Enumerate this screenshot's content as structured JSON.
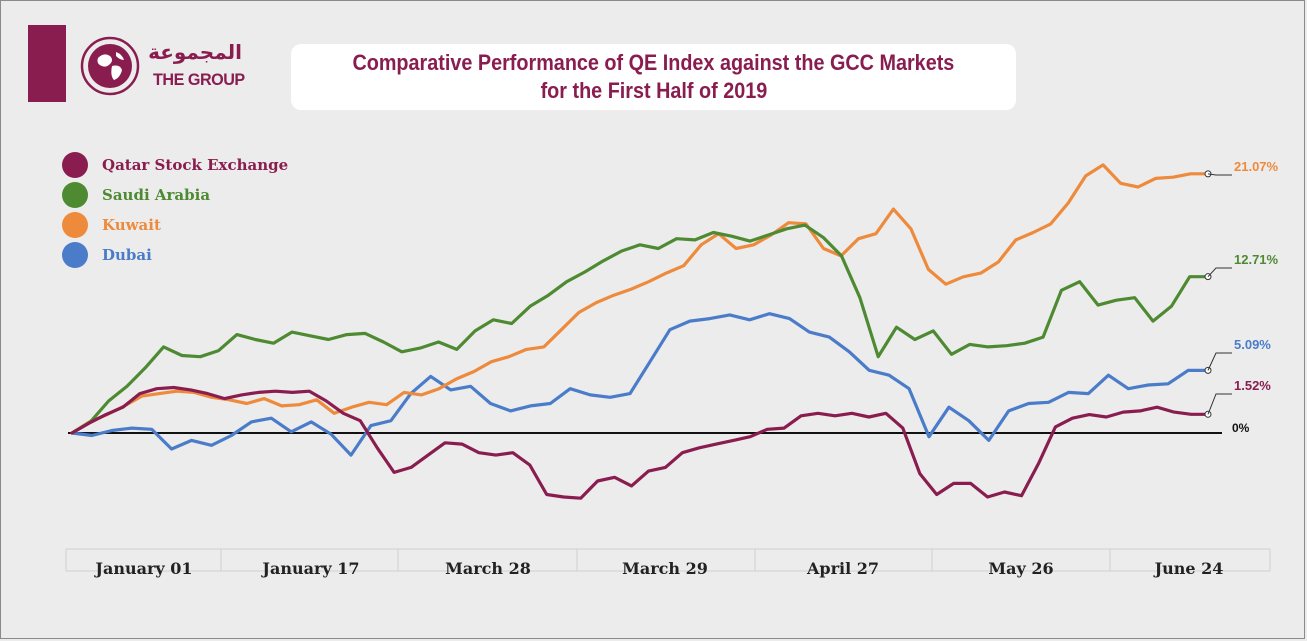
{
  "brand": {
    "arabic_name": "المجموعة",
    "english_name": "THE GROUP",
    "color": "#8a1d4f"
  },
  "title": {
    "line1": "Comparative Performance of QE Index against the GCC Markets",
    "line2": "for the First Half of 2019"
  },
  "chart_data": {
    "type": "line",
    "title": "Comparative Performance of QE Index against the GCC Markets for the First Half of 2019",
    "xlabel": "",
    "ylabel": "",
    "x_tick_labels": [
      "January 01",
      "January 17",
      "March 28",
      "March 29",
      "April 27",
      "May 26",
      "June 24"
    ],
    "ylim": [
      -10,
      25
    ],
    "baseline": 0,
    "baseline_label": "0%",
    "legend_position": "top-left",
    "grid": false,
    "series": [
      {
        "name": "Qatar Stock Exchange",
        "color": "#8a1d4f",
        "end_label": "1.52%",
        "values": [
          0,
          0.8,
          1.5,
          2.1,
          3.2,
          3.6,
          3.7,
          3.5,
          3.2,
          2.8,
          3.1,
          3.3,
          3.4,
          3.3,
          3.4,
          2.6,
          1.6,
          1.0,
          -1.2,
          -3.2,
          -2.8,
          -1.8,
          -0.8,
          -0.9,
          -1.6,
          -1.8,
          -1.6,
          -2.6,
          -5.0,
          -5.2,
          -5.3,
          -3.9,
          -3.6,
          -4.3,
          -3.1,
          -2.8,
          -1.6,
          -1.2,
          -0.9,
          -0.6,
          -0.3,
          0.3,
          0.4,
          1.4,
          1.6,
          1.4,
          1.6,
          1.3,
          1.6,
          0.4,
          -3.3,
          -5.0,
          -4.1,
          -4.1,
          -5.2,
          -4.8,
          -5.1,
          -2.5,
          0.5,
          1.2,
          1.5,
          1.3,
          1.7,
          1.8,
          2.1,
          1.7,
          1.52,
          1.52
        ],
        "end_value": 1.52
      },
      {
        "name": "Saudi Arabia",
        "color": "#4e8a32",
        "end_label": "12.71%",
        "values": [
          0,
          0.9,
          2.6,
          3.8,
          5.3,
          7.0,
          6.3,
          6.2,
          6.7,
          8.0,
          7.6,
          7.3,
          8.2,
          7.9,
          7.6,
          8.0,
          8.1,
          7.4,
          6.6,
          6.9,
          7.4,
          6.8,
          8.3,
          9.2,
          8.9,
          10.3,
          11.2,
          12.3,
          13.1,
          14.0,
          14.8,
          15.3,
          15.0,
          15.8,
          15.7,
          16.3,
          16.0,
          15.6,
          16.1,
          16.6,
          16.9,
          15.9,
          14.4,
          11.0,
          6.2,
          8.6,
          7.6,
          8.3,
          6.4,
          7.2,
          7.0,
          7.1,
          7.3,
          7.8,
          11.6,
          12.3,
          10.4,
          10.8,
          11.0,
          9.1,
          10.3,
          12.71,
          12.71
        ],
        "end_value": 12.71
      },
      {
        "name": "Kuwait",
        "color": "#ee8a3c",
        "end_label": "21.07%",
        "values": [
          0,
          0.9,
          1.5,
          2.2,
          3.0,
          3.2,
          3.4,
          3.3,
          2.9,
          2.7,
          2.4,
          2.8,
          2.2,
          2.3,
          2.7,
          1.6,
          2.1,
          2.5,
          2.3,
          3.3,
          3.1,
          3.6,
          4.4,
          5.0,
          5.8,
          6.2,
          6.8,
          7.0,
          8.4,
          9.8,
          10.6,
          11.2,
          11.7,
          12.3,
          13.0,
          13.6,
          15.3,
          16.2,
          15.0,
          15.3,
          16.1,
          17.1,
          17.0,
          15.0,
          14.4,
          15.8,
          16.2,
          18.2,
          16.6,
          13.3,
          12.1,
          12.7,
          13.0,
          13.9,
          15.7,
          16.3,
          17.0,
          18.7,
          20.9,
          21.8,
          20.3,
          20.0,
          20.7,
          20.8,
          21.07,
          21.07
        ],
        "end_value": 21.07
      },
      {
        "name": "Dubai",
        "color": "#4a7cc9",
        "end_label": "5.09%",
        "values": [
          0,
          -0.2,
          0.2,
          0.4,
          0.3,
          -1.3,
          -0.6,
          -1.0,
          -0.2,
          0.9,
          1.2,
          0.1,
          0.9,
          -0.1,
          -1.8,
          0.6,
          1.0,
          3.2,
          4.6,
          3.5,
          3.8,
          2.4,
          1.8,
          2.2,
          2.4,
          3.6,
          3.1,
          2.9,
          3.2,
          5.8,
          8.4,
          9.1,
          9.3,
          9.6,
          9.2,
          9.7,
          9.3,
          8.2,
          7.8,
          6.6,
          5.1,
          4.7,
          3.6,
          -0.3,
          2.1,
          1.0,
          -0.6,
          1.8,
          2.4,
          2.5,
          3.3,
          3.2,
          4.7,
          3.6,
          3.9,
          4.0,
          5.09,
          5.09
        ],
        "end_value": 5.09
      }
    ]
  }
}
